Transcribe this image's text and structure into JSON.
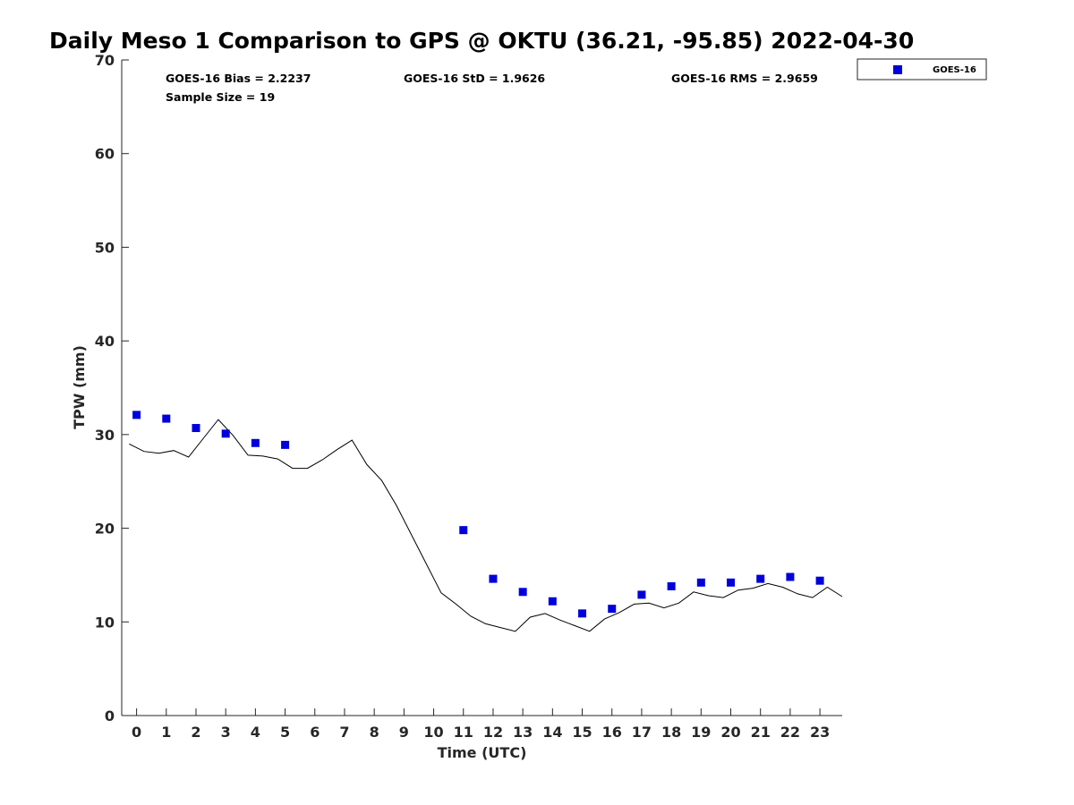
{
  "chart_data": {
    "type": "scatter",
    "title": "Daily Meso 1 Comparison to GPS @ OKTU (36.21, -95.85) 2022-04-30",
    "xlabel": "Time (UTC)",
    "ylabel": "TPW (mm)",
    "xlim": [
      -0.5,
      23.75
    ],
    "ylim": [
      0,
      70
    ],
    "x_ticks": [
      "0",
      "1",
      "2",
      "3",
      "4",
      "5",
      "6",
      "7",
      "8",
      "9",
      "10",
      "11",
      "12",
      "13",
      "14",
      "15",
      "16",
      "17",
      "18",
      "19",
      "20",
      "21",
      "22",
      "23"
    ],
    "y_ticks": [
      "0",
      "10",
      "20",
      "30",
      "40",
      "50",
      "60",
      "70"
    ],
    "grid": false,
    "legend": {
      "position": "top-right, outside plot",
      "entries": [
        "GOES-16"
      ]
    },
    "stats": [
      "GOES-16 Bias = 2.2237",
      "GOES-16 StD = 1.9626",
      "GOES-16 RMS = 2.9659",
      "Sample Size = 19"
    ],
    "series": [
      {
        "name": "GOES-16",
        "kind": "scatter",
        "marker": "square",
        "color": "#0000dd",
        "x": [
          0,
          1,
          2,
          3,
          4,
          5,
          11,
          12,
          13,
          14,
          15,
          16,
          17,
          18,
          19,
          20,
          21,
          22,
          23
        ],
        "y": [
          32.1,
          31.7,
          30.7,
          30.1,
          29.1,
          28.9,
          19.8,
          14.6,
          13.2,
          12.2,
          10.9,
          11.4,
          12.9,
          13.8,
          14.2,
          14.2,
          14.6,
          14.8,
          14.4
        ]
      },
      {
        "kind": "line",
        "color": "#000000",
        "x": [
          -0.25,
          0.25,
          0.75,
          1.25,
          1.75,
          2.25,
          2.75,
          3.25,
          3.75,
          4.25,
          4.75,
          5.25,
          5.75,
          6.25,
          6.75,
          7.25,
          7.75,
          8.25,
          8.75,
          9.25,
          9.75,
          10.25,
          10.75,
          11.25,
          11.75,
          12.25,
          12.75,
          13.25,
          13.75,
          14.25,
          14.75,
          15.25,
          15.75,
          16.25,
          16.75,
          17.25,
          17.75,
          18.25,
          18.75,
          19.25,
          19.75,
          20.25,
          20.75,
          21.25,
          21.75,
          22.25,
          22.75,
          23.25,
          23.75
        ],
        "y": [
          29.0,
          28.2,
          28.0,
          28.3,
          27.6,
          29.6,
          31.6,
          29.9,
          27.8,
          27.7,
          27.4,
          26.4,
          26.4,
          27.3,
          28.4,
          29.4,
          26.8,
          25.1,
          22.4,
          19.3,
          16.2,
          13.1,
          11.9,
          10.6,
          9.8,
          9.4,
          9.0,
          10.5,
          10.9,
          10.2,
          9.6,
          9.0,
          10.3,
          11.0,
          11.9,
          12.0,
          11.5,
          12.0,
          13.2,
          12.8,
          12.6,
          13.4,
          13.6,
          14.1,
          13.7,
          13.0,
          12.6,
          13.7,
          12.7
        ]
      }
    ]
  }
}
